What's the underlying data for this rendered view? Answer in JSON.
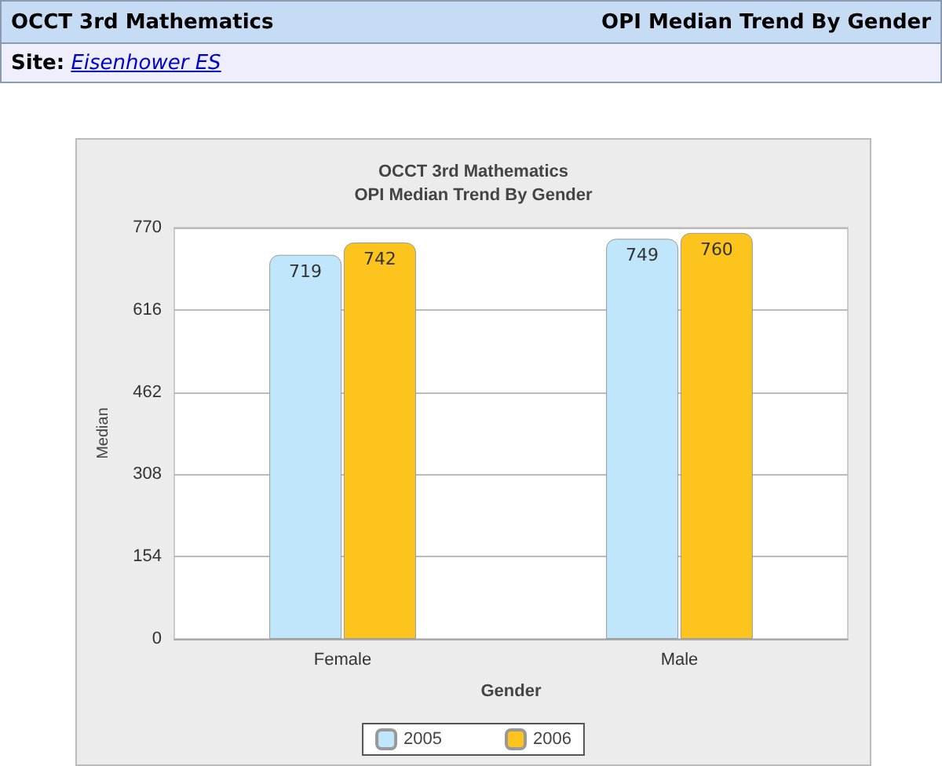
{
  "chart_data": {
    "type": "bar",
    "title": "OCCT 3rd Mathematics",
    "subtitle": "OPI Median Trend By Gender",
    "annotations": [
      "OCCT 3rd Mathematics",
      "OPI Median Trend By Gender",
      "Site: Eisenhower ES"
    ],
    "xlabel": "Gender",
    "ylabel": "Median",
    "categories": [
      "Female",
      "Male"
    ],
    "series": [
      {
        "name": "2005",
        "color": "#bfe6fb",
        "values": [
          719,
          749
        ]
      },
      {
        "name": "2006",
        "color": "#fcc41c",
        "values": [
          742,
          760
        ]
      }
    ],
    "ylim": [
      0,
      770
    ],
    "yticks": [
      0,
      154,
      308,
      462,
      616,
      770
    ],
    "grid": "y",
    "legend": "bottom",
    "data_labels": true
  }
}
